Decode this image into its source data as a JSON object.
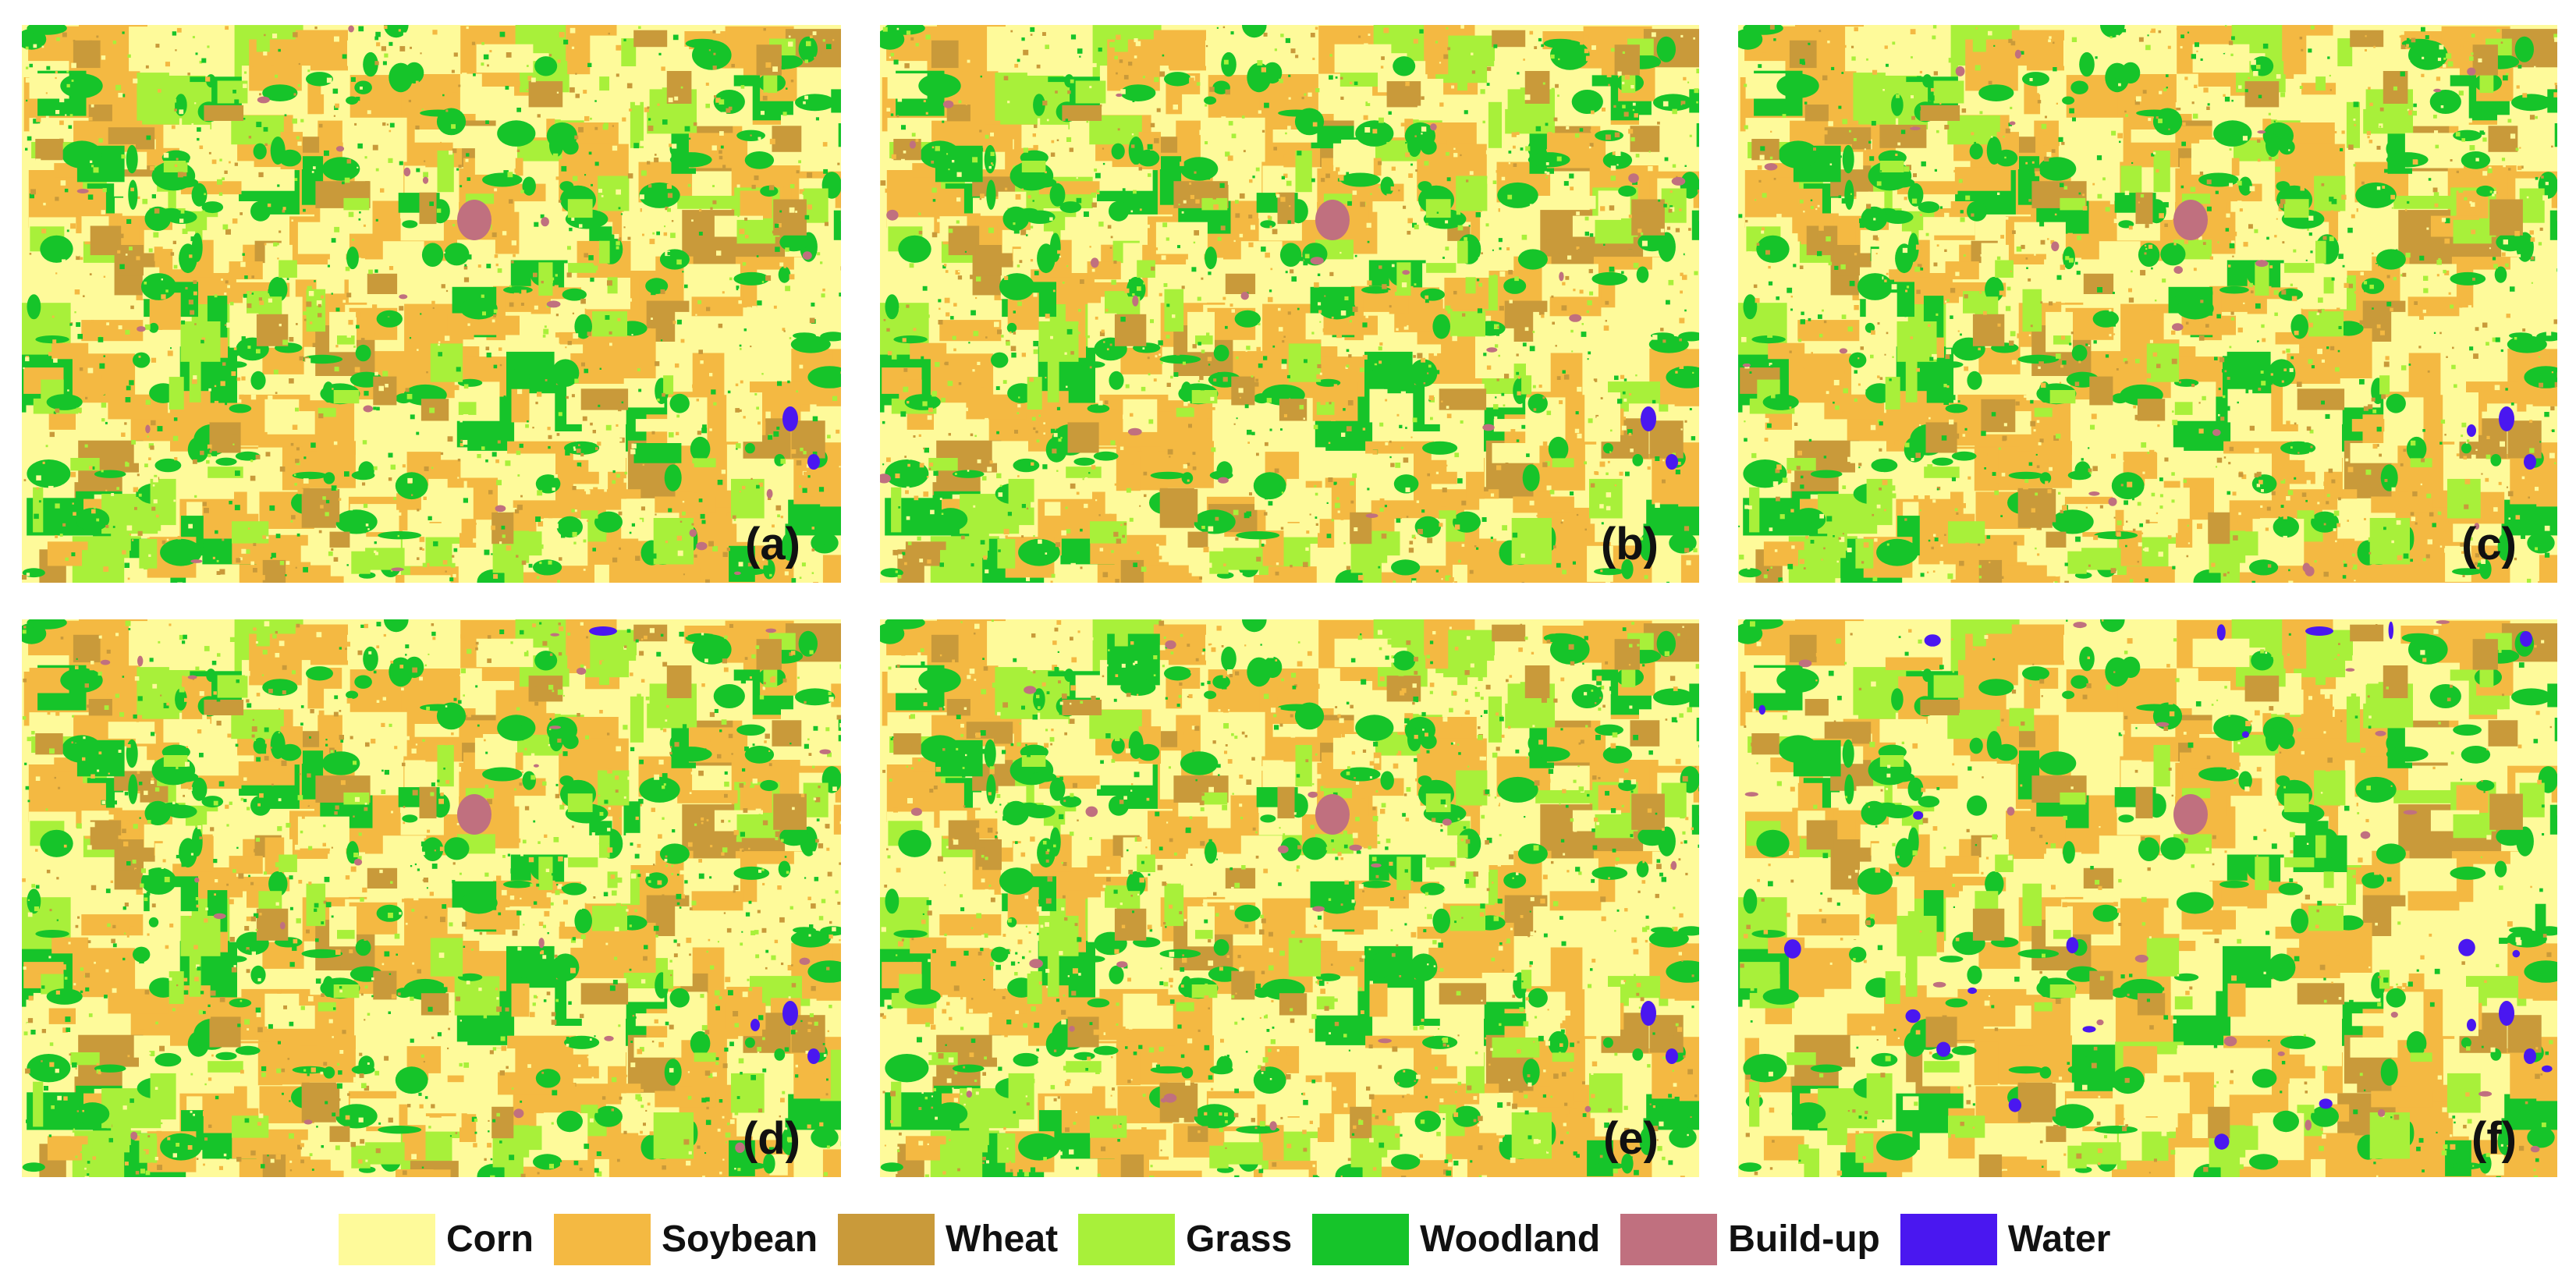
{
  "figure": {
    "panels": [
      {
        "label": "(a)",
        "water_level": 1
      },
      {
        "label": "(b)",
        "water_level": 1
      },
      {
        "label": "(c)",
        "water_level": 2
      },
      {
        "label": "(d)",
        "water_level": 3
      },
      {
        "label": "(e)",
        "water_level": 1
      },
      {
        "label": "(f)",
        "water_level": 4
      }
    ]
  },
  "legend": {
    "items": [
      {
        "label": "Corn",
        "color": "#fefa9a"
      },
      {
        "label": "Soybean",
        "color": "#f4b942"
      },
      {
        "label": "Wheat",
        "color": "#c99a3a"
      },
      {
        "label": "Grass",
        "color": "#a8f03a"
      },
      {
        "label": "Woodland",
        "color": "#16c42a"
      },
      {
        "label": "Build-up",
        "color": "#c0707f"
      },
      {
        "label": "Water",
        "color": "#4a17f0"
      }
    ]
  }
}
